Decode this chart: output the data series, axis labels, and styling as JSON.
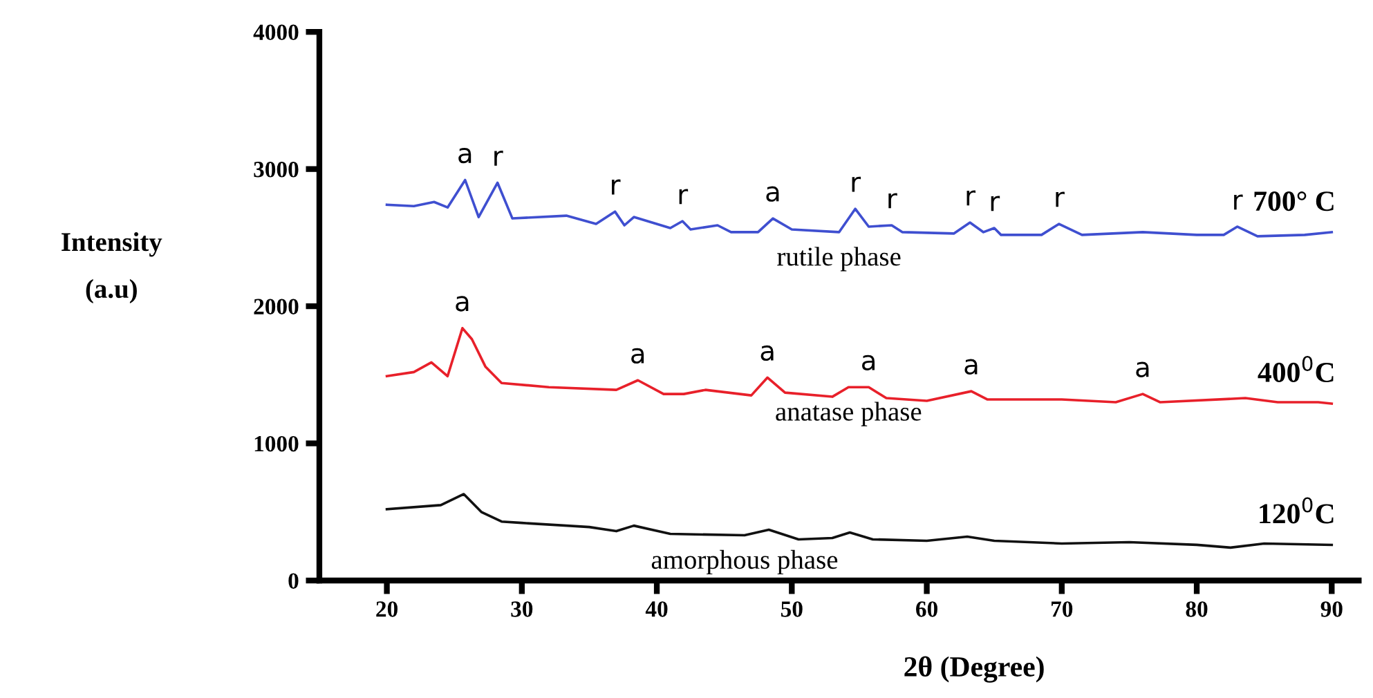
{
  "chart_data": {
    "type": "line",
    "xlabel": "2θ (Degree)",
    "ylabel": "Intensity\n(a.u)",
    "xlim": [
      15,
      92
    ],
    "ylim": [
      0,
      4000
    ],
    "xticks": [
      20,
      30,
      40,
      50,
      60,
      70,
      80,
      90
    ],
    "yticks": [
      0,
      1000,
      2000,
      3000,
      4000
    ],
    "grid": false,
    "legend": false,
    "marker": "none",
    "line_style": "solid",
    "series": [
      {
        "name": "700° C",
        "color": "#3f4fd0",
        "x": [
          20,
          22,
          23.5,
          24.5,
          25.8,
          26.8,
          28.2,
          29.3,
          33.3,
          35.5,
          36.9,
          37.6,
          38.3,
          41,
          41.9,
          42.5,
          44.5,
          45.5,
          47.5,
          48.6,
          50,
          53.5,
          54.7,
          55.7,
          57.4,
          58.2,
          62,
          63.2,
          64.2,
          65,
          65.5,
          68.5,
          69.8,
          71.5,
          76,
          80,
          82,
          83,
          84.5,
          88,
          90
        ],
        "values": [
          2740,
          2730,
          2760,
          2720,
          2920,
          2650,
          2900,
          2640,
          2660,
          2600,
          2690,
          2590,
          2650,
          2570,
          2620,
          2560,
          2590,
          2540,
          2540,
          2640,
          2560,
          2540,
          2710,
          2580,
          2590,
          2540,
          2530,
          2610,
          2540,
          2570,
          2520,
          2520,
          2600,
          2520,
          2540,
          2520,
          2520,
          2580,
          2510,
          2520,
          2540
        ]
      },
      {
        "name": "400$^{0}$C",
        "color": "#e8202a",
        "x": [
          20,
          22,
          23.3,
          24.5,
          25.6,
          26.3,
          27.3,
          28.5,
          32,
          37,
          38.6,
          40.5,
          42,
          43.6,
          47,
          48.2,
          49.5,
          53,
          54.2,
          55.7,
          57,
          60,
          63.3,
          64.5,
          70,
          74,
          76,
          77.3,
          83.6,
          86,
          89,
          90
        ],
        "values": [
          1490,
          1520,
          1590,
          1490,
          1840,
          1760,
          1560,
          1440,
          1410,
          1390,
          1460,
          1360,
          1360,
          1390,
          1350,
          1480,
          1370,
          1340,
          1410,
          1410,
          1330,
          1310,
          1380,
          1320,
          1320,
          1300,
          1360,
          1300,
          1330,
          1300,
          1300,
          1290
        ]
      },
      {
        "name": "120$^{0}$C",
        "color": "#111111",
        "x": [
          20,
          24,
          25.7,
          27,
          28.5,
          30,
          35,
          37,
          38.3,
          41,
          46.5,
          48.3,
          50.5,
          53,
          54.3,
          56,
          60,
          63,
          65,
          70,
          75,
          80,
          82.5,
          85,
          90
        ],
        "values": [
          520,
          550,
          630,
          500,
          430,
          420,
          390,
          360,
          400,
          340,
          330,
          370,
          300,
          310,
          350,
          300,
          290,
          320,
          290,
          270,
          280,
          260,
          240,
          270,
          260
        ]
      }
    ],
    "annotations": [
      {
        "text": "a",
        "x": 25.8,
        "y": 2920
      },
      {
        "text": "r",
        "x": 28.2,
        "y": 2900
      },
      {
        "text": "r",
        "x": 36.9,
        "y": 2690
      },
      {
        "text": "r",
        "x": 41.9,
        "y": 2620
      },
      {
        "text": "a",
        "x": 48.6,
        "y": 2640
      },
      {
        "text": "r",
        "x": 54.7,
        "y": 2710
      },
      {
        "text": "r",
        "x": 57.4,
        "y": 2590
      },
      {
        "text": "r",
        "x": 63.2,
        "y": 2610
      },
      {
        "text": "r",
        "x": 65,
        "y": 2570
      },
      {
        "text": "r",
        "x": 69.8,
        "y": 2600
      },
      {
        "text": "r",
        "x": 83,
        "y": 2580
      },
      {
        "text": "a",
        "x": 25.6,
        "y": 1840
      },
      {
        "text": "a",
        "x": 38.6,
        "y": 1460
      },
      {
        "text": "a",
        "x": 48.2,
        "y": 1480
      },
      {
        "text": "a",
        "x": 55.7,
        "y": 1410
      },
      {
        "text": "a",
        "x": 63.3,
        "y": 1380
      },
      {
        "text": "a",
        "x": 76,
        "y": 1360
      },
      {
        "text": "rutile phase",
        "x": 53.5,
        "y": 2540
      },
      {
        "text": "anatase phase",
        "x": 54.2,
        "y": 1410
      },
      {
        "text": "amorphous phase",
        "x": 46.5,
        "y": 330
      }
    ]
  }
}
